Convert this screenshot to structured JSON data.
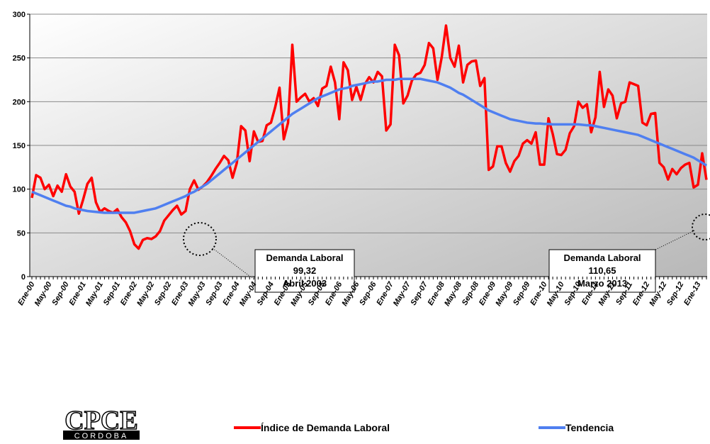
{
  "chart_data": {
    "type": "line",
    "categories": [
      "Ene-00",
      null,
      null,
      null,
      "May-00",
      null,
      null,
      null,
      "Sep-00",
      null,
      null,
      null,
      "Ene-01",
      null,
      null,
      null,
      "May-01",
      null,
      null,
      null,
      "Sep-01",
      null,
      null,
      null,
      "Ene-02",
      null,
      null,
      null,
      "May-02",
      null,
      null,
      null,
      "Sep-02",
      null,
      null,
      null,
      "Ene-03",
      null,
      null,
      null,
      "May-03",
      null,
      null,
      null,
      "Sep-03",
      null,
      null,
      null,
      "Ene-04",
      null,
      null,
      null,
      "May-04",
      null,
      null,
      null,
      "Sep-04",
      null,
      null,
      null,
      "Ene-05",
      null,
      null,
      null,
      "May-05",
      null,
      null,
      null,
      "Sep-05",
      null,
      null,
      null,
      "Ene-06",
      null,
      null,
      null,
      "May-06",
      null,
      null,
      null,
      "Sep-06",
      null,
      null,
      null,
      "Ene-07",
      null,
      null,
      null,
      "May-07",
      null,
      null,
      null,
      "Sep-07",
      null,
      null,
      null,
      "Ene-08",
      null,
      null,
      null,
      "May-08",
      null,
      null,
      null,
      "Sep-08",
      null,
      null,
      null,
      "Ene-09",
      null,
      null,
      null,
      "May-09",
      null,
      null,
      null,
      "Sep-09",
      null,
      null,
      null,
      "Ene-10",
      null,
      null,
      null,
      "May-10",
      null,
      null,
      null,
      "Sep-10",
      null,
      null,
      null,
      "Ene-11",
      null,
      null,
      null,
      "May-11",
      null,
      null,
      null,
      "Sep-11",
      null,
      null,
      null,
      "Ene-12",
      null,
      null,
      null,
      "May-12",
      null,
      null,
      null,
      "Sep-12",
      null,
      null,
      null,
      "Ene-13",
      null,
      null
    ],
    "series": [
      {
        "name": "Índice de Demanda Laboral",
        "color": "#ff0000",
        "values": [
          90,
          116,
          113,
          100,
          105,
          92,
          104,
          97,
          117,
          103,
          97,
          72,
          88,
          106,
          113,
          85,
          74,
          78,
          75,
          73,
          77,
          68,
          62,
          52,
          37,
          32,
          42,
          44,
          43,
          46,
          52,
          64,
          70,
          76,
          81,
          71,
          75,
          100,
          110,
          99.32,
          103,
          108,
          115,
          123,
          130,
          138,
          133,
          113,
          130,
          172,
          167,
          132,
          166,
          154,
          155,
          173,
          176,
          194,
          216,
          157,
          176,
          265,
          200,
          205,
          209,
          200,
          204,
          195,
          215,
          218,
          240,
          222,
          180,
          245,
          236,
          202,
          217,
          202,
          220,
          228,
          222,
          234,
          229,
          167,
          174,
          265,
          253,
          198,
          207,
          224,
          231,
          233,
          242,
          267,
          261,
          225,
          251,
          287,
          250,
          240,
          264,
          222,
          242,
          246,
          247,
          218,
          227,
          122,
          126,
          149,
          149,
          130,
          120,
          132,
          138,
          152,
          156,
          152,
          165,
          128,
          128,
          181,
          163,
          140,
          139,
          145,
          164,
          172,
          200,
          193,
          197,
          165,
          182,
          234,
          194,
          214,
          207,
          181,
          198,
          200,
          222,
          220,
          218,
          176,
          173,
          186,
          187,
          130,
          125,
          111,
          123,
          117,
          124,
          128,
          130,
          102,
          105,
          141,
          110.65
        ]
      },
      {
        "name": "Tendencia",
        "color": "#4f7ff0",
        "values": [
          97,
          95,
          93,
          91,
          89,
          87,
          85,
          83,
          81,
          80,
          78,
          77,
          76,
          75,
          74.5,
          74,
          73.5,
          73,
          73,
          73,
          73,
          73,
          73,
          73,
          73,
          74,
          75,
          76,
          77,
          78,
          80,
          82,
          84,
          86,
          88,
          90,
          92,
          95,
          97,
          100,
          103,
          106,
          110,
          114,
          118,
          122,
          126,
          130,
          134,
          138,
          142,
          146,
          150,
          154,
          158,
          162,
          166,
          170,
          174,
          178,
          182,
          186,
          189,
          192,
          195,
          198,
          201,
          204,
          206,
          208,
          210,
          212,
          214,
          215,
          216,
          218,
          219,
          220,
          221,
          222,
          223,
          223,
          224,
          225,
          225,
          225,
          226,
          226,
          226,
          226,
          226,
          226,
          225,
          224,
          223,
          222,
          220,
          218,
          216,
          213,
          210,
          208,
          205,
          202,
          199,
          196,
          193,
          190,
          188,
          186,
          184,
          182,
          180,
          179,
          178,
          177,
          176,
          175.5,
          175,
          175,
          174.5,
          174.5,
          174,
          174,
          174,
          174,
          174,
          174,
          174,
          173.5,
          173,
          173,
          172,
          171,
          170,
          169,
          168,
          167,
          166,
          165,
          164,
          163,
          162,
          160,
          158,
          156,
          154,
          152,
          150,
          148,
          146,
          144,
          142,
          140,
          138,
          136,
          133,
          130,
          127
        ]
      }
    ],
    "ylim": [
      0,
      300
    ],
    "yticks": [
      0,
      50,
      100,
      150,
      200,
      250,
      300
    ],
    "grid": true,
    "annotations": [
      {
        "lines": [
          "Demanda Laboral",
          "99,32",
          "Abril 2003"
        ]
      },
      {
        "lines": [
          "Demanda Laboral",
          "110,65",
          "Marzo 2013"
        ]
      }
    ],
    "logo": {
      "title": "CPCE",
      "subtitle": "CORDOBA"
    }
  }
}
